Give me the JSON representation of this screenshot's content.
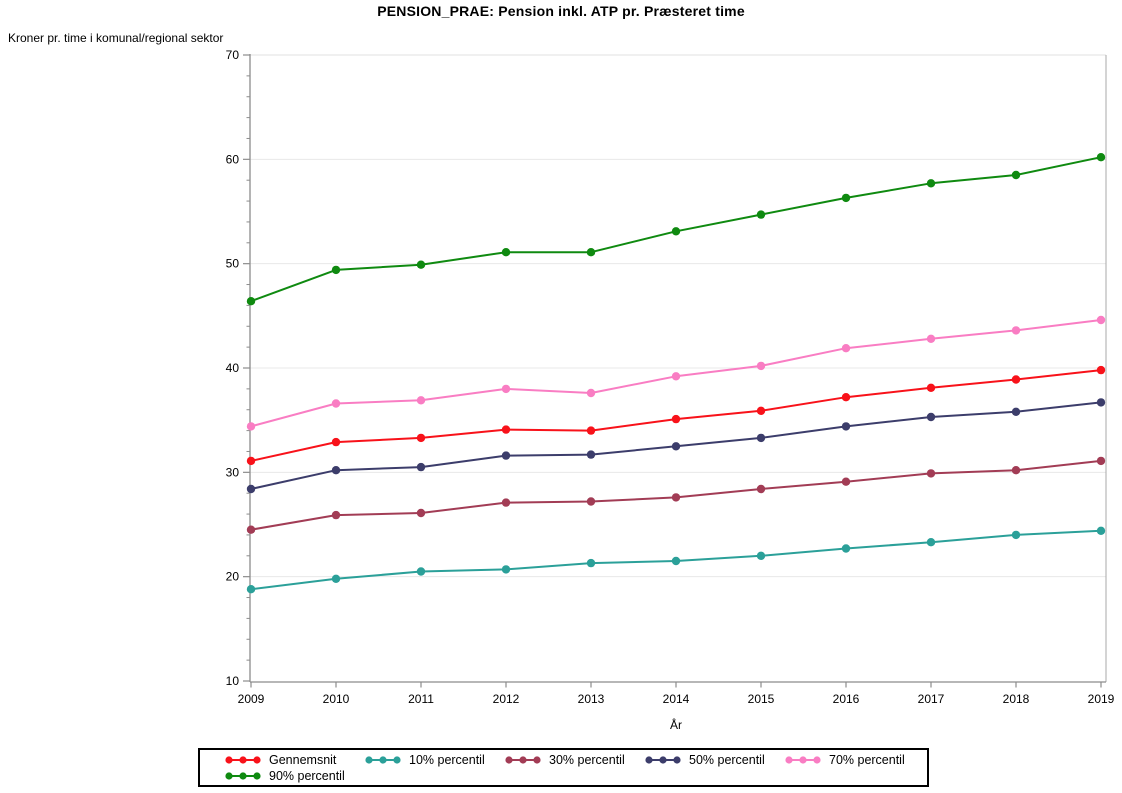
{
  "title": "PENSION_PRAE: Pension inkl. ATP pr. Præsteret time",
  "unit_label": "Kroner pr. time i komunal/regional sektor",
  "chart_data": {
    "type": "line",
    "title": "PENSION_PRAE: Pension inkl. ATP pr. Præsteret time",
    "ylabel": "Kroner pr. time i komunal/regional sektor",
    "xlabel": "År",
    "x": [
      2009,
      2010,
      2011,
      2012,
      2013,
      2014,
      2015,
      2016,
      2017,
      2018,
      2019
    ],
    "ylim": [
      10,
      70
    ],
    "yticks": [
      10,
      20,
      30,
      40,
      50,
      60,
      70
    ],
    "y_minor_tick_step": 2,
    "grid": "horizontal",
    "legend_position": "bottom",
    "marker": "filled-circle",
    "series": [
      {
        "name": "Gennemsnit",
        "color": "#F8121A",
        "values": [
          31.1,
          32.9,
          33.3,
          34.1,
          34.0,
          35.1,
          35.9,
          37.2,
          38.1,
          38.9,
          39.8
        ]
      },
      {
        "name": "10% percentil",
        "color": "#2BA099",
        "values": [
          18.8,
          19.8,
          20.5,
          20.7,
          21.3,
          21.5,
          22.0,
          22.7,
          23.3,
          24.0,
          24.4
        ]
      },
      {
        "name": "30% percentil",
        "color": "#A23C55",
        "values": [
          24.5,
          25.9,
          26.1,
          27.1,
          27.2,
          27.6,
          28.4,
          29.1,
          29.9,
          30.2,
          31.1
        ]
      },
      {
        "name": "50% percentil",
        "color": "#3C3D6B",
        "values": [
          28.4,
          30.2,
          30.5,
          31.6,
          31.7,
          32.5,
          33.3,
          34.4,
          35.3,
          35.8,
          36.7
        ]
      },
      {
        "name": "70% percentil",
        "color": "#F97DC3",
        "values": [
          34.4,
          36.6,
          36.9,
          38.0,
          37.6,
          39.2,
          40.2,
          41.9,
          42.8,
          43.6,
          44.6
        ]
      },
      {
        "name": "90% percentil",
        "color": "#0F8A10",
        "values": [
          46.4,
          49.4,
          49.9,
          51.1,
          51.1,
          53.1,
          54.7,
          56.3,
          57.7,
          58.5,
          60.2
        ]
      }
    ],
    "colors": {
      "axis": "#8C8C8C",
      "frame_top": "#E2E2E2",
      "frame_right": "#A9A9A9",
      "gridline": "#E8E8E8"
    }
  }
}
